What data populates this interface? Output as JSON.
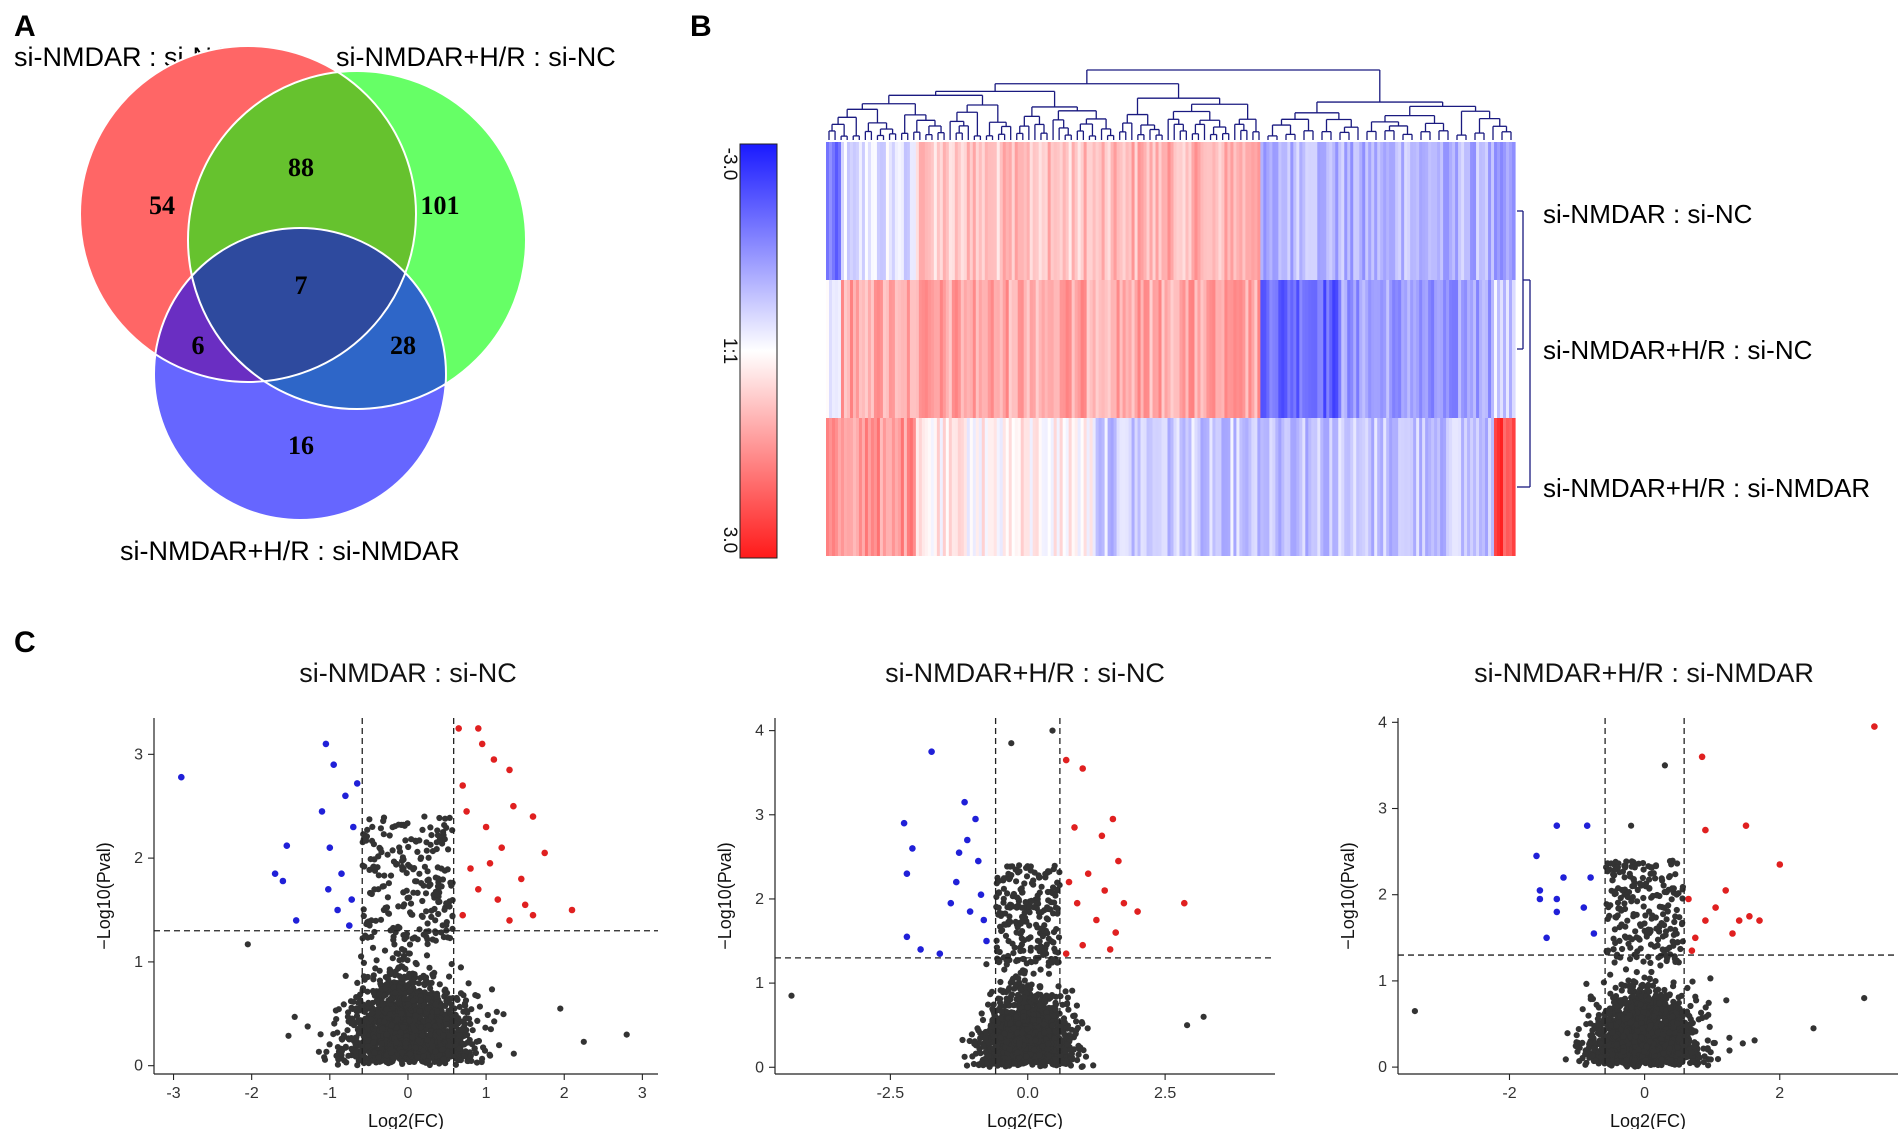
{
  "panels": {
    "a": "A",
    "b": "B",
    "c": "C"
  },
  "venn": {
    "sets": [
      {
        "name": "si-NMDAR : si-NC",
        "color": "#ff6666"
      },
      {
        "name": "si-NMDAR+H/R : si-NC",
        "color": "#66ff66"
      },
      {
        "name": "si-NMDAR+H/R : si-NMDAR",
        "color": "#6666ff"
      }
    ],
    "regions": {
      "only_1": "54",
      "only_2": "101",
      "only_3": "16",
      "r1_2": "88",
      "r1_3": "6",
      "r2_3": "28",
      "r1_2_3": "7"
    },
    "region_colors": {
      "r1_2": "#66c22e",
      "r1_3": "#6a2ec2",
      "r2_3": "#2e66c8",
      "r1_2_3": "#2e4a9e"
    }
  },
  "heatmap": {
    "rows": [
      "si-NMDAR : si-NC",
      "si-NMDAR+H/R : si-NC",
      "si-NMDAR+H/R : si-NMDAR"
    ],
    "colorbar": {
      "ticks": [
        "-3.0",
        "1:1",
        "3.0"
      ],
      "high_color": "#1a1aff",
      "mid_color": "#ffffff",
      "low_color": "#ff1a1a"
    },
    "dendrogram_color": "#1a1a80"
  },
  "chart_data": [
    {
      "type": "scatter",
      "title": "si-NMDAR : si-NC",
      "xlabel": "Log2(FC)",
      "ylabel": "−Log10(Pval)",
      "xlim": [
        -3.25,
        3.2
      ],
      "ylim": [
        -0.08,
        3.35
      ],
      "xticks": [
        -3,
        -2,
        -1,
        0,
        1,
        2,
        3
      ],
      "yticks": [
        0,
        1,
        2,
        3
      ],
      "vlines": [
        -0.585,
        0.585
      ],
      "hline": 1.3,
      "colors": {
        "up": "#e02020",
        "down": "#2020d8",
        "ns": "#333333"
      },
      "n_background": 1700,
      "highlight_points": {
        "down": [
          [
            -2.9,
            2.78
          ],
          [
            -1.55,
            2.12
          ],
          [
            -1.6,
            1.78
          ],
          [
            -1.43,
            1.4
          ],
          [
            -1.7,
            1.85
          ],
          [
            -1.05,
            3.1
          ],
          [
            -0.95,
            2.9
          ],
          [
            -1.1,
            2.45
          ],
          [
            -1.0,
            2.1
          ],
          [
            -0.85,
            1.85
          ],
          [
            -0.72,
            1.6
          ],
          [
            -0.8,
            2.6
          ],
          [
            -0.65,
            2.72
          ],
          [
            -0.9,
            1.5
          ],
          [
            -1.02,
            1.7
          ],
          [
            -0.7,
            2.3
          ],
          [
            -0.75,
            1.35
          ]
        ],
        "up": [
          [
            0.65,
            3.25
          ],
          [
            0.9,
            3.25
          ],
          [
            0.95,
            3.1
          ],
          [
            1.1,
            2.95
          ],
          [
            1.3,
            2.85
          ],
          [
            0.7,
            2.7
          ],
          [
            1.6,
            2.4
          ],
          [
            1.75,
            2.05
          ],
          [
            1.45,
            1.8
          ],
          [
            1.5,
            1.55
          ],
          [
            1.6,
            1.45
          ],
          [
            2.1,
            1.5
          ],
          [
            1.0,
            2.3
          ],
          [
            1.2,
            2.1
          ],
          [
            0.8,
            1.9
          ],
          [
            1.15,
            1.6
          ],
          [
            1.35,
            2.5
          ],
          [
            0.7,
            1.45
          ],
          [
            0.9,
            1.7
          ],
          [
            1.3,
            1.4
          ],
          [
            1.05,
            1.95
          ],
          [
            0.75,
            2.45
          ]
        ],
        "ns": [
          [
            -2.05,
            1.17
          ],
          [
            -1.45,
            0.47
          ],
          [
            2.25,
            0.23
          ],
          [
            2.8,
            0.3
          ],
          [
            1.95,
            0.55
          ]
        ]
      }
    },
    {
      "type": "scatter",
      "title": "si-NMDAR+H/R : si-NC",
      "xlabel": "Log2(FC)",
      "ylabel": "−Log10(Pval)",
      "xlim": [
        -4.6,
        4.5
      ],
      "ylim": [
        -0.08,
        4.15
      ],
      "xticks": [
        -2.5,
        0.0,
        2.5
      ],
      "yticks": [
        0,
        1,
        2,
        3,
        4
      ],
      "vlines": [
        -0.585,
        0.585
      ],
      "hline": 1.3,
      "colors": {
        "up": "#e02020",
        "down": "#2020d8",
        "ns": "#333333"
      },
      "n_background": 1700,
      "highlight_points": {
        "down": [
          [
            -1.75,
            3.75
          ],
          [
            -2.25,
            2.9
          ],
          [
            -2.1,
            2.6
          ],
          [
            -2.2,
            2.3
          ],
          [
            -2.2,
            1.55
          ],
          [
            -1.95,
            1.4
          ],
          [
            -1.6,
            1.35
          ],
          [
            -1.15,
            3.15
          ],
          [
            -1.1,
            2.7
          ],
          [
            -0.9,
            2.45
          ],
          [
            -0.85,
            2.05
          ],
          [
            -0.8,
            1.75
          ],
          [
            -1.3,
            2.2
          ],
          [
            -1.4,
            1.95
          ],
          [
            -0.75,
            1.5
          ],
          [
            -1.05,
            1.85
          ],
          [
            -0.95,
            2.95
          ],
          [
            -1.25,
            2.55
          ]
        ],
        "up": [
          [
            0.7,
            3.65
          ],
          [
            1.0,
            3.55
          ],
          [
            1.55,
            2.95
          ],
          [
            1.35,
            2.75
          ],
          [
            1.65,
            2.45
          ],
          [
            0.85,
            2.85
          ],
          [
            1.4,
            2.1
          ],
          [
            1.75,
            1.95
          ],
          [
            2.85,
            1.95
          ],
          [
            2.0,
            1.85
          ],
          [
            1.1,
            2.3
          ],
          [
            0.9,
            1.95
          ],
          [
            1.25,
            1.75
          ],
          [
            0.75,
            2.2
          ],
          [
            1.6,
            1.6
          ],
          [
            1.0,
            1.45
          ],
          [
            0.7,
            1.35
          ],
          [
            1.5,
            1.4
          ]
        ],
        "ns": [
          [
            -4.3,
            0.85
          ],
          [
            2.9,
            0.5
          ],
          [
            3.2,
            0.6
          ],
          [
            0.45,
            4.0
          ],
          [
            -0.3,
            3.85
          ]
        ]
      }
    },
    {
      "type": "scatter",
      "title": "si-NMDAR+H/R : si-NMDAR",
      "xlabel": "Log2(FC)",
      "ylabel": "−Log10(Pval)",
      "xlim": [
        -3.65,
        3.75
      ],
      "ylim": [
        -0.08,
        4.05
      ],
      "xticks": [
        -2,
        0,
        2
      ],
      "yticks": [
        0,
        1,
        2,
        3,
        4
      ],
      "vlines": [
        -0.585,
        0.585
      ],
      "hline": 1.3,
      "colors": {
        "up": "#e02020",
        "down": "#2020d8",
        "ns": "#333333"
      },
      "n_background": 1700,
      "highlight_points": {
        "down": [
          [
            -1.3,
            2.8
          ],
          [
            -1.6,
            2.45
          ],
          [
            -1.55,
            2.05
          ],
          [
            -1.55,
            1.95
          ],
          [
            -1.3,
            1.95
          ],
          [
            -1.2,
            2.2
          ],
          [
            -1.3,
            1.8
          ],
          [
            -1.45,
            1.5
          ],
          [
            -0.85,
            2.8
          ],
          [
            -0.8,
            2.2
          ],
          [
            -0.75,
            1.55
          ],
          [
            -0.9,
            1.85
          ]
        ],
        "up": [
          [
            3.4,
            3.95
          ],
          [
            0.85,
            3.6
          ],
          [
            1.5,
            2.8
          ],
          [
            0.9,
            2.75
          ],
          [
            2.0,
            2.35
          ],
          [
            1.2,
            2.05
          ],
          [
            1.55,
            1.75
          ],
          [
            1.7,
            1.7
          ],
          [
            1.4,
            1.7
          ],
          [
            0.9,
            1.7
          ],
          [
            1.05,
            1.85
          ],
          [
            0.75,
            1.5
          ],
          [
            0.7,
            1.35
          ],
          [
            1.3,
            1.55
          ],
          [
            0.65,
            1.95
          ]
        ],
        "ns": [
          [
            -3.4,
            0.65
          ],
          [
            3.25,
            0.8
          ],
          [
            2.5,
            0.45
          ],
          [
            0.3,
            3.5
          ],
          [
            -0.2,
            2.8
          ]
        ]
      }
    }
  ]
}
